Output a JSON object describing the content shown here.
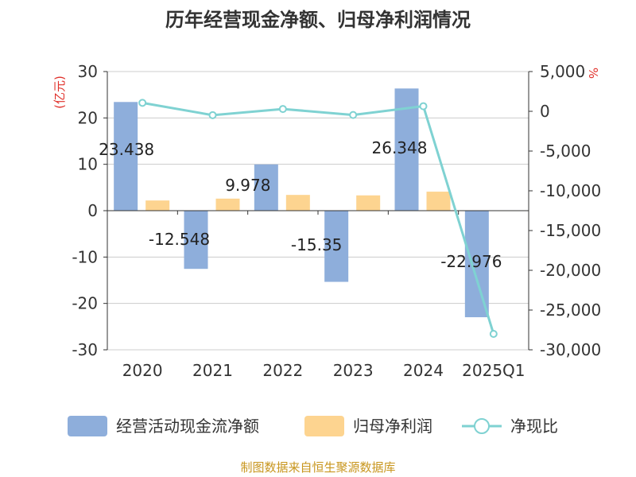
{
  "chart_data": {
    "type": "bar",
    "title": "历年经营现金净额、归母净利润情况",
    "categories": [
      "2020",
      "2021",
      "2022",
      "2023",
      "2024",
      "2025Q1"
    ],
    "series": [
      {
        "name": "经营活动现金流净额",
        "type": "bar",
        "axis": "left",
        "color": "#8eaedb",
        "values": [
          23.438,
          -12.548,
          9.978,
          -15.35,
          26.348,
          -22.976
        ],
        "labels": [
          "23.438",
          "-12.548",
          "9.978",
          "-15.35",
          "26.348",
          "-22.976"
        ]
      },
      {
        "name": "归母净利润",
        "type": "bar",
        "axis": "left",
        "color": "#fdd490",
        "values": [
          2.2,
          2.6,
          3.4,
          3.3,
          4.1,
          0.08
        ]
      },
      {
        "name": "净现比",
        "type": "line",
        "axis": "right",
        "color": "#7fd2d2",
        "values": [
          1065,
          -483,
          293,
          -465,
          643,
          -28000
        ]
      }
    ],
    "left_axis": {
      "unit": "(亿元)",
      "min": -30,
      "max": 30,
      "ticks": [
        30,
        20,
        10,
        0,
        -10,
        -20,
        -30
      ],
      "tick_labels": [
        "30",
        "20",
        "10",
        "0",
        "-10",
        "-20",
        "-30"
      ]
    },
    "right_axis": {
      "unit": "%",
      "min": -30000,
      "max": 5000,
      "ticks": [
        5000,
        0,
        -5000,
        -10000,
        -15000,
        -20000,
        -25000,
        -30000
      ],
      "tick_labels": [
        "5,000",
        "0",
        "-5,000",
        "-10,000",
        "-15,000",
        "-20,000",
        "-25,000",
        "-30,000"
      ]
    },
    "source": "制图数据来自恒生聚源数据库"
  }
}
